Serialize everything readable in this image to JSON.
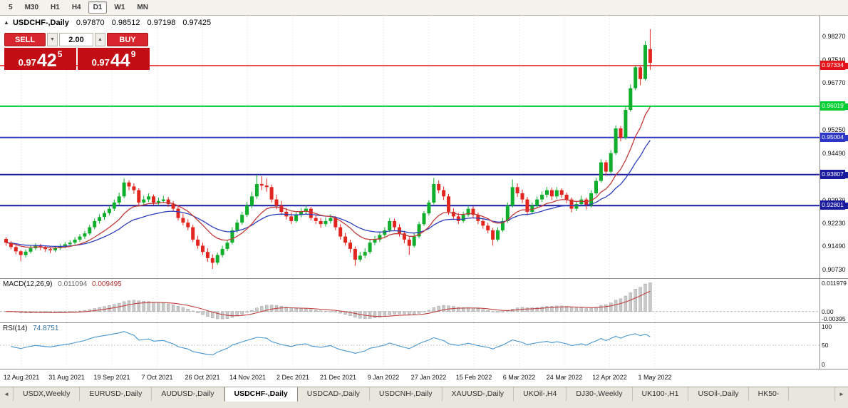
{
  "toolbar": {
    "items": [
      "5",
      "M30",
      "H1",
      "H4",
      "D1",
      "W1",
      "MN"
    ],
    "active": "D1"
  },
  "chart_header": {
    "collapse": "▲",
    "symbol": "USDCHF-,Daily",
    "open": "0.97870",
    "high": "0.98512",
    "low": "0.97198",
    "close": "0.97425"
  },
  "trade_panel": {
    "sell_label": "SELL",
    "buy_label": "BUY",
    "volume": "2.00",
    "down_arrow": "▼",
    "up_arrow": "▲",
    "sell": {
      "prefix": "0.97",
      "big": "42",
      "sup": "5"
    },
    "buy": {
      "prefix": "0.97",
      "big": "44",
      "sup": "9"
    }
  },
  "price_axis": {
    "ticks": [
      "0.98270",
      "0.97510",
      "0.96770",
      "0.96010",
      "0.95250",
      "0.94490",
      "0.93730",
      "0.92970",
      "0.92230",
      "0.91490",
      "0.90730"
    ],
    "levels": [
      {
        "value": "0.97334",
        "color": "#e31219",
        "width": 1.4
      },
      {
        "value": "0.96019",
        "color": "#00ce32",
        "width": 2
      },
      {
        "value": "0.95004",
        "color": "#2c36c8",
        "width": 2
      },
      {
        "value": "0.93807",
        "color": "#1a1a9e",
        "width": 2
      },
      {
        "value": "0.92801",
        "color": "#1a1a9e",
        "width": 2
      }
    ]
  },
  "indicators": {
    "macd": {
      "label": "MACD(12,26,9)",
      "main_value": "0.011094",
      "signal_value": "0.009495",
      "axis_ticks": [
        "0.011979",
        "0.00",
        "-0.00395"
      ]
    },
    "rsi": {
      "label": "RSI(14)",
      "value": "74.8751",
      "axis_ticks": [
        "100",
        "50",
        "0"
      ]
    }
  },
  "date_axis": {
    "labels": [
      "12 Aug 2021",
      "31 Aug 2021",
      "19 Sep 2021",
      "7 Oct 2021",
      "26 Oct 2021",
      "14 Nov 2021",
      "2 Dec 2021",
      "21 Dec 2021",
      "9 Jan 2022",
      "27 Jan 2022",
      "15 Feb 2022",
      "6 Mar 2022",
      "24 Mar 2022",
      "12 Apr 2022",
      "1 May 2022"
    ]
  },
  "tabs": {
    "scroll_left": "◄",
    "scroll_right": "►",
    "active": "USDCHF-,Daily",
    "items": [
      "USDX,Weekly",
      "EURUSD-,Daily",
      "AUDUSD-,Daily",
      "USDCHF-,Daily",
      "USDCAD-,Daily",
      "USDCNH-,Daily",
      "XAUUSD-,Daily",
      "UKOil-,H4",
      "DJ30-,Weekly",
      "UK100-,H1",
      "USOil-,Daily",
      "HK50-"
    ]
  },
  "colors": {
    "candle_up": "#0fae2c",
    "candle_down": "#e2251f",
    "ma_fast": "#c23b3b",
    "ma_slow": "#2d3fbb",
    "macd_bar": "#c9c9c9",
    "macd_bar_edge": "#9a9a9a",
    "macd_signal": "#c04040",
    "rsi_line": "#4795cf",
    "grid": "#dedede",
    "trade_red": "#c20d15"
  },
  "chart_data": {
    "type": "candlestick",
    "symbol": "USDCHF-",
    "timeframe": "Daily",
    "price_top": 0.9895,
    "price_bottom": 0.9045,
    "ma_fast_period": 12,
    "ma_slow_period": 24,
    "levels": [
      0.97334,
      0.96019,
      0.95004,
      0.93807,
      0.92801
    ],
    "last_ohlc": {
      "open": 0.9787,
      "high": 0.98512,
      "low": 0.97198,
      "close": 0.97425
    },
    "ohlc": [
      [
        0.9172,
        0.9178,
        0.915,
        0.916
      ],
      [
        0.916,
        0.9165,
        0.9138,
        0.9146
      ],
      [
        0.9146,
        0.9152,
        0.9122,
        0.9132
      ],
      [
        0.9132,
        0.9136,
        0.91,
        0.912
      ],
      [
        0.912,
        0.9138,
        0.9112,
        0.9131
      ],
      [
        0.9131,
        0.915,
        0.9125,
        0.9142
      ],
      [
        0.9142,
        0.9158,
        0.9136,
        0.915
      ],
      [
        0.915,
        0.9156,
        0.9136,
        0.9144
      ],
      [
        0.9144,
        0.915,
        0.913,
        0.9139
      ],
      [
        0.9139,
        0.9146,
        0.9126,
        0.9135
      ],
      [
        0.9135,
        0.915,
        0.913,
        0.9142
      ],
      [
        0.9142,
        0.9156,
        0.9136,
        0.9148
      ],
      [
        0.9148,
        0.9162,
        0.9142,
        0.9155
      ],
      [
        0.9155,
        0.9168,
        0.9148,
        0.916
      ],
      [
        0.916,
        0.9178,
        0.9154,
        0.917
      ],
      [
        0.917,
        0.9188,
        0.9163,
        0.918
      ],
      [
        0.918,
        0.9198,
        0.9172,
        0.919
      ],
      [
        0.919,
        0.9218,
        0.9184,
        0.921
      ],
      [
        0.921,
        0.9238,
        0.9204,
        0.923
      ],
      [
        0.923,
        0.9252,
        0.9222,
        0.9243
      ],
      [
        0.9243,
        0.9264,
        0.9234,
        0.9256
      ],
      [
        0.9256,
        0.928,
        0.9248,
        0.927
      ],
      [
        0.927,
        0.93,
        0.9262,
        0.929
      ],
      [
        0.929,
        0.9322,
        0.9283,
        0.931
      ],
      [
        0.931,
        0.9368,
        0.9304,
        0.9355
      ],
      [
        0.9355,
        0.9362,
        0.933,
        0.9342
      ],
      [
        0.9342,
        0.9352,
        0.9318,
        0.933
      ],
      [
        0.933,
        0.9336,
        0.928,
        0.929
      ],
      [
        0.929,
        0.9312,
        0.9282,
        0.93
      ],
      [
        0.93,
        0.932,
        0.9292,
        0.931
      ],
      [
        0.931,
        0.9316,
        0.9282,
        0.929
      ],
      [
        0.929,
        0.9306,
        0.928,
        0.9295
      ],
      [
        0.9295,
        0.9312,
        0.9288,
        0.93
      ],
      [
        0.93,
        0.9308,
        0.9276,
        0.9285
      ],
      [
        0.9285,
        0.9295,
        0.926,
        0.927
      ],
      [
        0.927,
        0.9278,
        0.9232,
        0.924
      ],
      [
        0.924,
        0.9254,
        0.9216,
        0.9225
      ],
      [
        0.9225,
        0.9236,
        0.92,
        0.921
      ],
      [
        0.921,
        0.9218,
        0.9162,
        0.917
      ],
      [
        0.917,
        0.9182,
        0.914,
        0.915
      ],
      [
        0.915,
        0.916,
        0.912,
        0.913
      ],
      [
        0.913,
        0.9142,
        0.9098,
        0.911
      ],
      [
        0.911,
        0.9122,
        0.9075,
        0.9095
      ],
      [
        0.9095,
        0.9128,
        0.9088,
        0.912
      ],
      [
        0.912,
        0.915,
        0.9112,
        0.914
      ],
      [
        0.914,
        0.917,
        0.9132,
        0.916
      ],
      [
        0.916,
        0.921,
        0.9154,
        0.92
      ],
      [
        0.92,
        0.9235,
        0.9192,
        0.9225
      ],
      [
        0.9225,
        0.926,
        0.9218,
        0.925
      ],
      [
        0.925,
        0.9292,
        0.9243,
        0.928
      ],
      [
        0.928,
        0.9325,
        0.9272,
        0.931
      ],
      [
        0.931,
        0.938,
        0.9302,
        0.935
      ],
      [
        0.935,
        0.9375,
        0.933,
        0.9345
      ],
      [
        0.9345,
        0.9368,
        0.9325,
        0.934
      ],
      [
        0.934,
        0.9348,
        0.929,
        0.93
      ],
      [
        0.93,
        0.9315,
        0.9268,
        0.928
      ],
      [
        0.928,
        0.9295,
        0.925,
        0.926
      ],
      [
        0.926,
        0.9272,
        0.9235,
        0.9245
      ],
      [
        0.9245,
        0.9258,
        0.922,
        0.923
      ],
      [
        0.923,
        0.9262,
        0.9224,
        0.925
      ],
      [
        0.925,
        0.9272,
        0.9242,
        0.926
      ],
      [
        0.926,
        0.9282,
        0.9252,
        0.927
      ],
      [
        0.927,
        0.9276,
        0.9232,
        0.924
      ],
      [
        0.924,
        0.9252,
        0.922,
        0.923
      ],
      [
        0.923,
        0.924,
        0.9208,
        0.922
      ],
      [
        0.922,
        0.9242,
        0.9212,
        0.923
      ],
      [
        0.923,
        0.9252,
        0.9222,
        0.924
      ],
      [
        0.924,
        0.9246,
        0.92,
        0.921
      ],
      [
        0.921,
        0.922,
        0.917,
        0.918
      ],
      [
        0.918,
        0.9192,
        0.915,
        0.916
      ],
      [
        0.916,
        0.917,
        0.9128,
        0.914
      ],
      [
        0.914,
        0.9148,
        0.9085,
        0.9105
      ],
      [
        0.9105,
        0.913,
        0.9098,
        0.9118
      ],
      [
        0.9118,
        0.9142,
        0.911,
        0.913
      ],
      [
        0.913,
        0.917,
        0.9124,
        0.916
      ],
      [
        0.916,
        0.9182,
        0.9152,
        0.917
      ],
      [
        0.917,
        0.9196,
        0.9162,
        0.9185
      ],
      [
        0.9185,
        0.921,
        0.9178,
        0.92
      ],
      [
        0.92,
        0.924,
        0.9194,
        0.923
      ],
      [
        0.923,
        0.9238,
        0.92,
        0.921
      ],
      [
        0.921,
        0.922,
        0.918,
        0.919
      ],
      [
        0.919,
        0.9198,
        0.9158,
        0.917
      ],
      [
        0.917,
        0.9178,
        0.912,
        0.915
      ],
      [
        0.915,
        0.919,
        0.9144,
        0.918
      ],
      [
        0.918,
        0.9228,
        0.9174,
        0.922
      ],
      [
        0.922,
        0.9262,
        0.9214,
        0.9255
      ],
      [
        0.9255,
        0.9298,
        0.9248,
        0.929
      ],
      [
        0.929,
        0.937,
        0.9284,
        0.935
      ],
      [
        0.935,
        0.9362,
        0.932,
        0.933
      ],
      [
        0.933,
        0.9342,
        0.9298,
        0.931
      ],
      [
        0.931,
        0.9318,
        0.925,
        0.926
      ],
      [
        0.926,
        0.9272,
        0.9235,
        0.9245
      ],
      [
        0.9245,
        0.9256,
        0.922,
        0.923
      ],
      [
        0.923,
        0.926,
        0.9224,
        0.925
      ],
      [
        0.925,
        0.928,
        0.9244,
        0.927
      ],
      [
        0.927,
        0.9278,
        0.924,
        0.925
      ],
      [
        0.925,
        0.9258,
        0.922,
        0.923
      ],
      [
        0.923,
        0.924,
        0.9205,
        0.9215
      ],
      [
        0.9215,
        0.9224,
        0.919,
        0.92
      ],
      [
        0.92,
        0.9208,
        0.915,
        0.917
      ],
      [
        0.917,
        0.921,
        0.9164,
        0.92
      ],
      [
        0.92,
        0.924,
        0.9194,
        0.923
      ],
      [
        0.923,
        0.929,
        0.9224,
        0.928
      ],
      [
        0.928,
        0.9365,
        0.9274,
        0.934
      ],
      [
        0.934,
        0.9352,
        0.9308,
        0.932
      ],
      [
        0.932,
        0.9332,
        0.9288,
        0.93
      ],
      [
        0.93,
        0.9308,
        0.9248,
        0.926
      ],
      [
        0.926,
        0.929,
        0.9252,
        0.928
      ],
      [
        0.928,
        0.931,
        0.9272,
        0.93
      ],
      [
        0.93,
        0.9326,
        0.9292,
        0.9315
      ],
      [
        0.9315,
        0.934,
        0.9306,
        0.933
      ],
      [
        0.933,
        0.9338,
        0.9298,
        0.931
      ],
      [
        0.931,
        0.934,
        0.9302,
        0.933
      ],
      [
        0.933,
        0.9336,
        0.9305,
        0.9315
      ],
      [
        0.9315,
        0.9322,
        0.9288,
        0.93
      ],
      [
        0.93,
        0.9306,
        0.9258,
        0.927
      ],
      [
        0.927,
        0.9295,
        0.9262,
        0.9285
      ],
      [
        0.9285,
        0.9312,
        0.9278,
        0.93
      ],
      [
        0.93,
        0.9306,
        0.9268,
        0.928
      ],
      [
        0.928,
        0.933,
        0.9274,
        0.932
      ],
      [
        0.932,
        0.937,
        0.9314,
        0.936
      ],
      [
        0.936,
        0.943,
        0.9354,
        0.942
      ],
      [
        0.942,
        0.9428,
        0.9378,
        0.939
      ],
      [
        0.939,
        0.946,
        0.9384,
        0.945
      ],
      [
        0.945,
        0.954,
        0.9444,
        0.953
      ],
      [
        0.953,
        0.9538,
        0.9488,
        0.95
      ],
      [
        0.95,
        0.96,
        0.9494,
        0.959
      ],
      [
        0.959,
        0.9672,
        0.9584,
        0.966
      ],
      [
        0.966,
        0.9733,
        0.9654,
        0.9728
      ],
      [
        0.9728,
        0.9734,
        0.967,
        0.969
      ],
      [
        0.969,
        0.9812,
        0.9685,
        0.98
      ],
      [
        0.9787,
        0.98512,
        0.97198,
        0.97425
      ]
    ]
  }
}
